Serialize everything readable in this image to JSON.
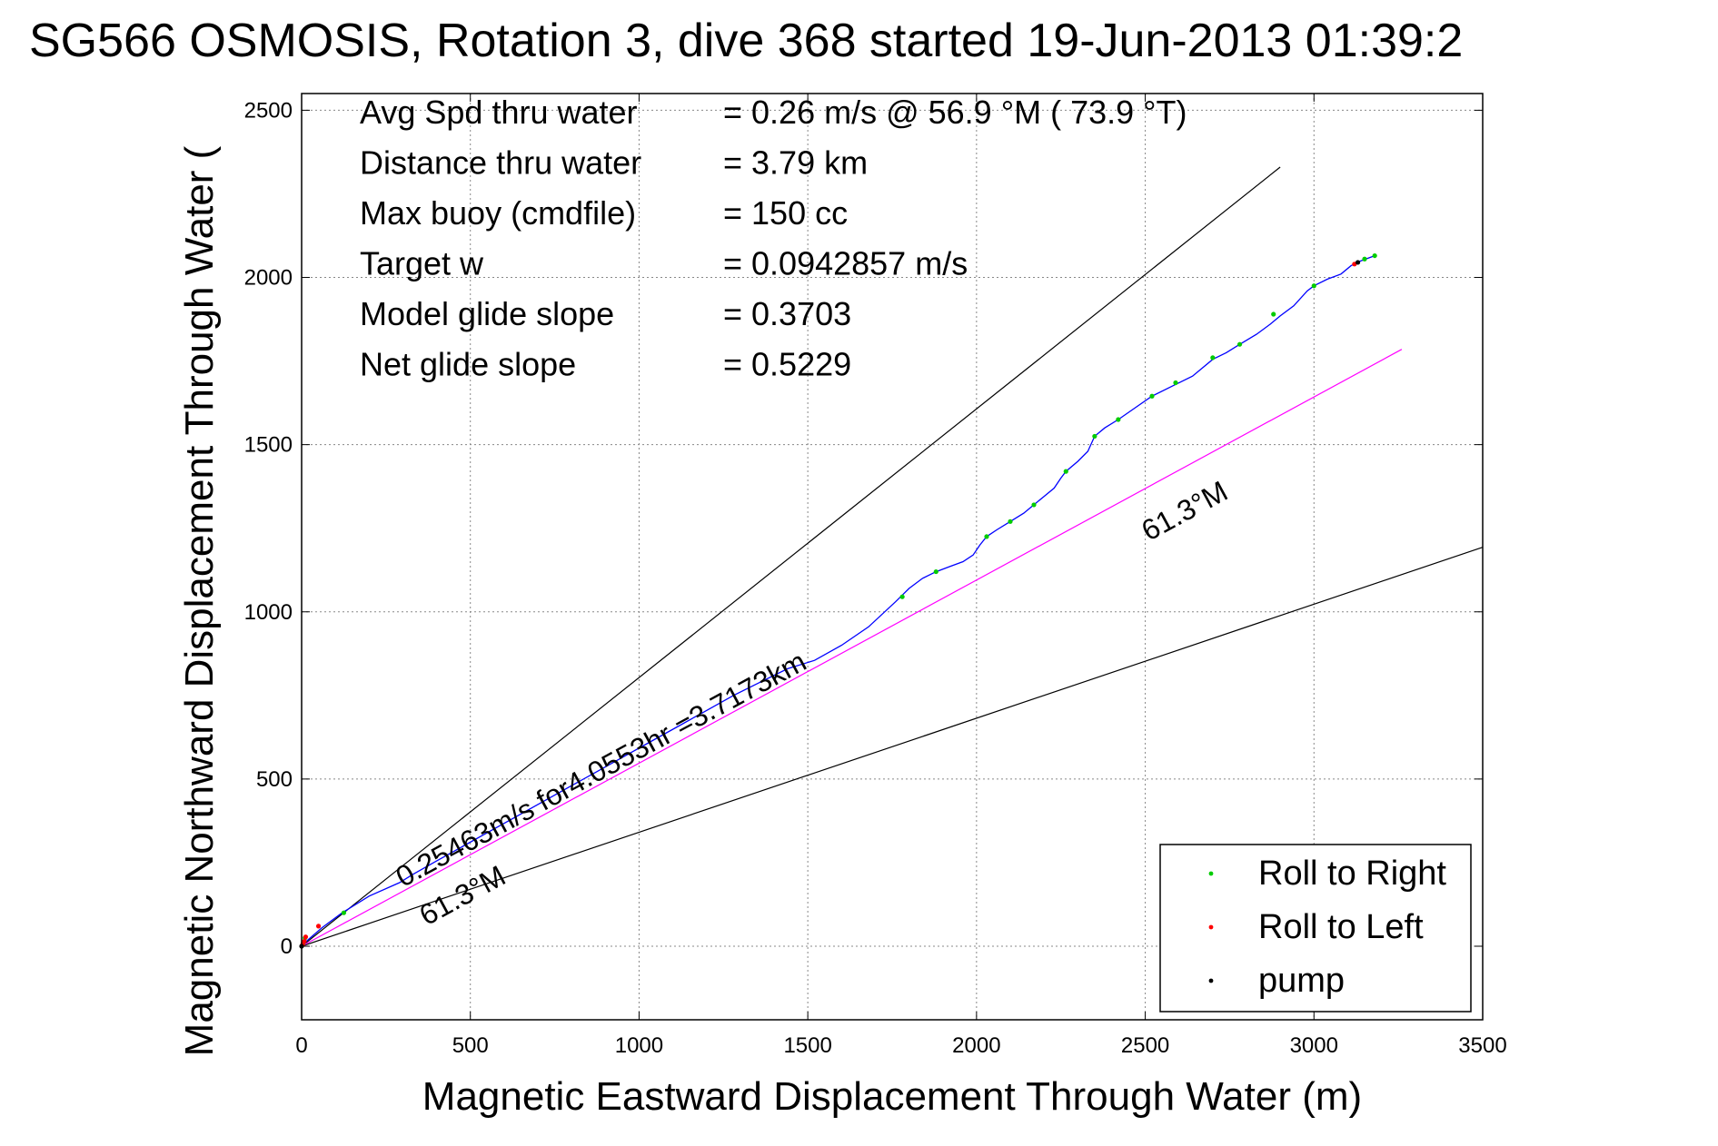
{
  "chart_data": {
    "type": "line",
    "title": "SG566 OSMOSIS, Rotation 3, dive 368 started 19-Jun-2013 01:39:2",
    "xlabel": "Magnetic Eastward Displacement Through Water (m)",
    "ylabel": "Magnetic Northward Displacement Through Water (",
    "xlim": [
      0,
      3500
    ],
    "ylim": [
      -220,
      2550
    ],
    "x_ticks": [
      0,
      500,
      1000,
      1500,
      2000,
      2500,
      3000,
      3500
    ],
    "y_ticks": [
      0,
      500,
      1000,
      1500,
      2000,
      2500
    ],
    "grid": true,
    "info_lines": [
      {
        "label": "Avg Spd thru water",
        "value": "=  0.26 m/s @  56.9 °M ( 73.9 °T)"
      },
      {
        "label": "Distance thru water",
        "value": "=  3.79 km"
      },
      {
        "label": "Max buoy (cmdfile)",
        "value": "= 150 cc"
      },
      {
        "label": "Target w",
        "value": "= 0.0942857 m/s"
      },
      {
        "label": "Model glide slope",
        "value": "= 0.3703"
      },
      {
        "label": "Net glide slope",
        "value": "= 0.5229"
      }
    ],
    "annotations": [
      {
        "text": "0.25463m/s for4.0553hr =3.7173km",
        "x": 300,
        "y": 175,
        "angle_deg": 61.3
      },
      {
        "text": "61.3°M",
        "x": 370,
        "y": 60,
        "angle_deg": 61.3
      },
      {
        "text": "61.3°M",
        "x": 2510,
        "y": 1210,
        "angle_deg": 61.3
      }
    ],
    "reference_lines": [
      {
        "name": "upper-heading-line",
        "points": [
          [
            0,
            0
          ],
          [
            2900,
            2330
          ]
        ],
        "color": "#000000"
      },
      {
        "name": "lower-heading-line",
        "points": [
          [
            0,
            0
          ],
          [
            3520,
            1200
          ]
        ],
        "color": "#000000"
      },
      {
        "name": "mean-heading-line",
        "points": [
          [
            0,
            0
          ],
          [
            3260,
            1785
          ]
        ],
        "color": "#ff00ff"
      }
    ],
    "series": [
      {
        "color": "#0000ff",
        "points": [
          [
            0,
            0
          ],
          [
            20,
            20
          ],
          [
            60,
            55
          ],
          [
            120,
            100
          ],
          [
            200,
            150
          ],
          [
            290,
            190
          ],
          [
            330,
            215
          ],
          [
            400,
            255
          ],
          [
            480,
            300
          ],
          [
            560,
            345
          ],
          [
            640,
            390
          ],
          [
            720,
            435
          ],
          [
            800,
            480
          ],
          [
            880,
            525
          ],
          [
            960,
            570
          ],
          [
            1040,
            615
          ],
          [
            1120,
            660
          ],
          [
            1200,
            705
          ],
          [
            1280,
            750
          ],
          [
            1360,
            790
          ],
          [
            1440,
            830
          ],
          [
            1520,
            855
          ],
          [
            1600,
            900
          ],
          [
            1680,
            955
          ],
          [
            1760,
            1030
          ],
          [
            1800,
            1070
          ],
          [
            1840,
            1100
          ],
          [
            1880,
            1120
          ],
          [
            1920,
            1135
          ],
          [
            1960,
            1150
          ],
          [
            1990,
            1170
          ],
          [
            2010,
            1200
          ],
          [
            2030,
            1225
          ],
          [
            2060,
            1245
          ],
          [
            2100,
            1270
          ],
          [
            2140,
            1295
          ],
          [
            2170,
            1320
          ],
          [
            2200,
            1345
          ],
          [
            2230,
            1370
          ],
          [
            2250,
            1400
          ],
          [
            2265,
            1420
          ],
          [
            2300,
            1450
          ],
          [
            2330,
            1480
          ],
          [
            2350,
            1525
          ],
          [
            2380,
            1550
          ],
          [
            2420,
            1575
          ],
          [
            2470,
            1610
          ],
          [
            2520,
            1645
          ],
          [
            2580,
            1675
          ],
          [
            2640,
            1705
          ],
          [
            2700,
            1755
          ],
          [
            2740,
            1775
          ],
          [
            2780,
            1800
          ],
          [
            2830,
            1830
          ],
          [
            2870,
            1860
          ],
          [
            2900,
            1885
          ],
          [
            2940,
            1915
          ],
          [
            2980,
            1960
          ],
          [
            3000,
            1975
          ],
          [
            3040,
            1995
          ],
          [
            3080,
            2010
          ],
          [
            3110,
            2035
          ],
          [
            3140,
            2050
          ],
          [
            3180,
            2065
          ]
        ]
      }
    ],
    "legend": {
      "placement": "bottom-right",
      "entries": [
        {
          "label": "Roll to Right",
          "color": "#00cc00"
        },
        {
          "label": "Roll to Left",
          "color": "#ff0000"
        },
        {
          "label": "pump",
          "color": "#000000"
        }
      ]
    },
    "markers": {
      "roll_right": [
        [
          5,
          10
        ],
        [
          10,
          25
        ],
        [
          125,
          100
        ],
        [
          1780,
          1045
        ],
        [
          1880,
          1120
        ],
        [
          2030,
          1225
        ],
        [
          2100,
          1270
        ],
        [
          2170,
          1320
        ],
        [
          2265,
          1420
        ],
        [
          2350,
          1525
        ],
        [
          2420,
          1575
        ],
        [
          2520,
          1645
        ],
        [
          2590,
          1685
        ],
        [
          2700,
          1760
        ],
        [
          2780,
          1800
        ],
        [
          2880,
          1890
        ],
        [
          3000,
          1975
        ],
        [
          3150,
          2055
        ],
        [
          3180,
          2065
        ]
      ],
      "roll_left": [
        [
          3,
          5
        ],
        [
          8,
          15
        ],
        [
          12,
          28
        ],
        [
          50,
          60
        ],
        [
          3120,
          2040
        ]
      ],
      "pump": [
        [
          0,
          0
        ],
        [
          3130,
          2045
        ]
      ]
    }
  }
}
